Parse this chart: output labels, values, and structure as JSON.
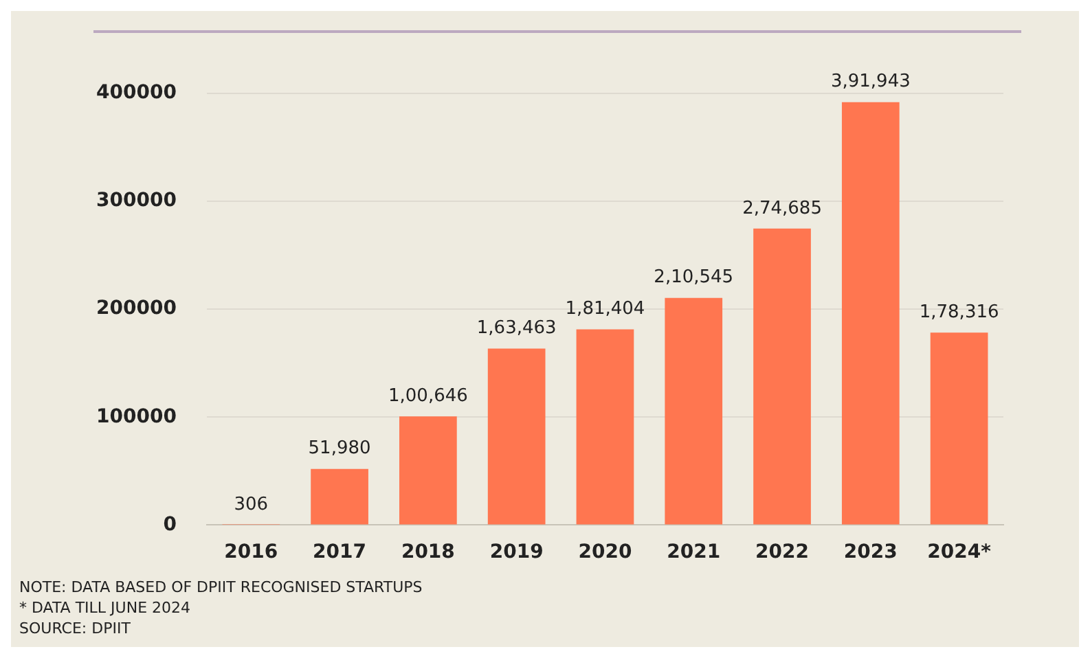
{
  "chart_data": {
    "type": "bar",
    "categories": [
      "2016",
      "2017",
      "2018",
      "2019",
      "2020",
      "2021",
      "2022",
      "2023",
      "2024*"
    ],
    "values": [
      306,
      51980,
      100646,
      163463,
      181404,
      210545,
      274685,
      391943,
      178316
    ],
    "value_labels": [
      "306",
      "51,980",
      "1,00,646",
      "1,63,463",
      "1,81,404",
      "2,10,545",
      "2,74,685",
      "3,91,943",
      "1,78,316"
    ],
    "color": "#ff7650",
    "ylim": [
      0,
      400000
    ],
    "yticks": [
      0,
      100000,
      200000,
      300000,
      400000
    ],
    "grid": "y",
    "annotations": [
      "NOTE: DATA BASED OF DPIIT RECOGNISED STARTUPS",
      "* DATA TILL JUNE 2024",
      "SOURCE: DPIIT"
    ]
  }
}
